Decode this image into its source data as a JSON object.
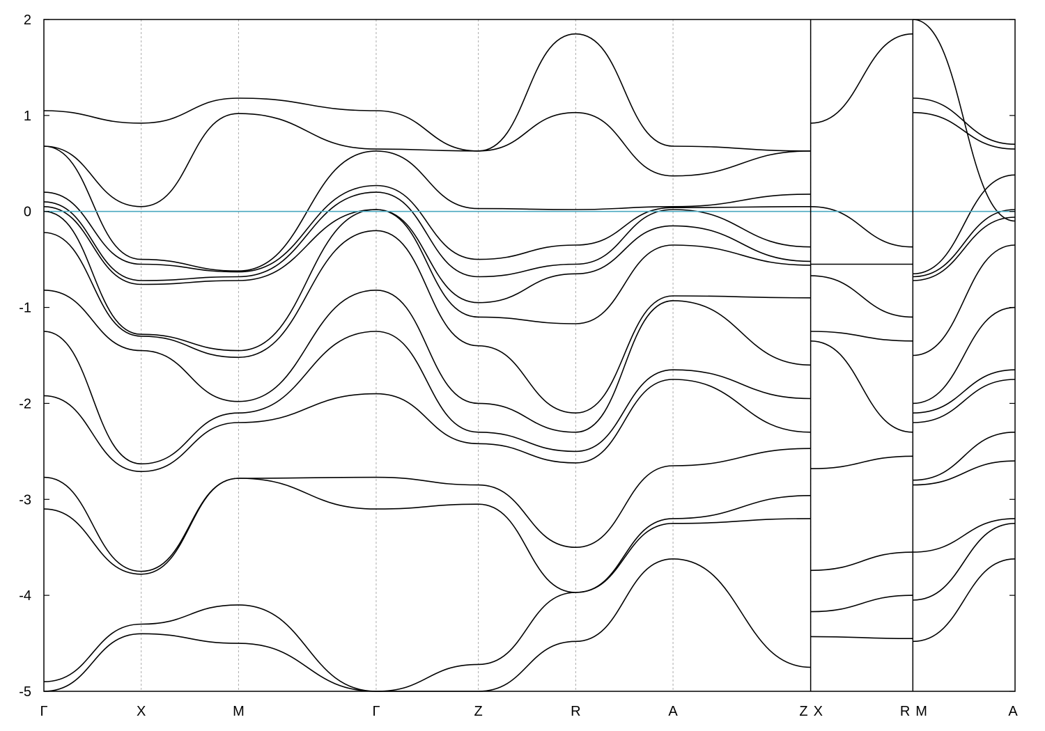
{
  "chart_data": {
    "type": "line",
    "title": "",
    "xlabel": "",
    "ylabel": "",
    "ylim": [
      -5,
      2
    ],
    "yticks": [
      "2",
      "1",
      "0",
      "-1",
      "-2",
      "-3",
      "-4",
      "-5"
    ],
    "grid": "vertical dashed lines at high-symmetry points",
    "fermi_level": 0,
    "fermi_color": "#4aa8c0",
    "band_color": "#000000",
    "kpoints": [
      {
        "label": "Γ",
        "x": 0
      },
      {
        "label": "X",
        "x": 1
      },
      {
        "label": "M",
        "x": 2
      },
      {
        "label": "Γ",
        "x": 3.414
      },
      {
        "label": "Z",
        "x": 4.464
      },
      {
        "label": "R",
        "x": 5.464
      },
      {
        "label": "A",
        "x": 6.464
      },
      {
        "label": "Z",
        "x": 7.878
      },
      {
        "label": "X",
        "x": 7.878
      },
      {
        "label": "R",
        "x": 8.928
      },
      {
        "label": "M",
        "x": 8.928
      },
      {
        "label": "A",
        "x": 9.978
      }
    ],
    "segment_breaks": [
      7.878,
      8.928
    ],
    "segments": [
      {
        "x": [
          0,
          1,
          2,
          3.414,
          4.464,
          5.464,
          6.464,
          7.878
        ],
        "bands": [
          [
            -5.0,
            -4.4,
            -4.5,
            -5.1,
            -5.0,
            -4.48,
            -3.62,
            -4.75
          ],
          [
            -4.9,
            -4.3,
            -4.1,
            -5.0,
            -4.72,
            -3.97,
            -3.25,
            -3.2
          ],
          [
            -3.1,
            -3.78,
            -2.78,
            -3.1,
            -3.05,
            -3.97,
            -3.2,
            -2.96
          ],
          [
            -2.77,
            -3.75,
            -2.78,
            -2.77,
            -2.85,
            -3.5,
            -2.65,
            -2.47
          ],
          [
            -1.92,
            -2.71,
            -2.2,
            -1.9,
            -2.42,
            -2.62,
            -1.75,
            -2.3
          ],
          [
            -1.25,
            -2.63,
            -2.1,
            -1.25,
            -2.3,
            -2.5,
            -1.65,
            -1.95
          ],
          [
            -0.82,
            -1.45,
            -1.98,
            -0.82,
            -2.0,
            -2.3,
            -0.93,
            -1.6
          ],
          [
            -0.22,
            -1.3,
            -1.52,
            -0.2,
            -1.4,
            -2.1,
            -0.88,
            -0.9
          ],
          [
            0.0,
            -1.28,
            -1.45,
            0.02,
            -1.1,
            -1.17,
            -0.35,
            -0.56
          ],
          [
            0.05,
            -0.76,
            -0.72,
            0.02,
            -0.95,
            -0.65,
            -0.15,
            -0.52
          ],
          [
            0.1,
            -0.72,
            -0.68,
            0.2,
            -0.68,
            -0.55,
            0.02,
            -0.37
          ],
          [
            0.2,
            -0.55,
            -0.63,
            0.27,
            -0.5,
            -0.35,
            0.04,
            0.05
          ],
          [
            0.68,
            -0.5,
            -0.62,
            0.63,
            0.03,
            0.02,
            0.05,
            0.18
          ],
          [
            0.68,
            0.05,
            1.02,
            0.65,
            0.63,
            1.03,
            0.37,
            0.63
          ],
          [
            1.05,
            0.92,
            1.18,
            1.05,
            0.63,
            1.85,
            0.68,
            0.63
          ]
        ]
      },
      {
        "x": [
          7.878,
          8.928
        ],
        "bands": [
          [
            -4.43,
            -4.45
          ],
          [
            -4.17,
            -4.0
          ],
          [
            -3.74,
            -3.55
          ],
          [
            -2.68,
            -2.55
          ],
          [
            -1.35,
            -2.3
          ],
          [
            -1.25,
            -1.35
          ],
          [
            -0.67,
            -1.1
          ],
          [
            -0.55,
            -0.55
          ],
          [
            0.05,
            -0.37
          ],
          [
            0.92,
            1.85
          ]
        ]
      },
      {
        "x": [
          8.928,
          9.978
        ],
        "bands": [
          [
            -4.48,
            -3.62
          ],
          [
            -4.05,
            -3.25
          ],
          [
            -3.55,
            -3.2
          ],
          [
            -2.85,
            -2.6
          ],
          [
            -2.8,
            -2.3
          ],
          [
            -2.2,
            -1.75
          ],
          [
            -2.1,
            -1.65
          ],
          [
            -2.0,
            -1.0
          ],
          [
            -1.5,
            -0.35
          ],
          [
            -0.72,
            -0.06
          ],
          [
            -0.68,
            0.02
          ],
          [
            -0.65,
            0.38
          ],
          [
            1.03,
            0.65
          ],
          [
            1.18,
            0.7
          ],
          [
            2.0,
            -0.1
          ]
        ]
      }
    ]
  }
}
